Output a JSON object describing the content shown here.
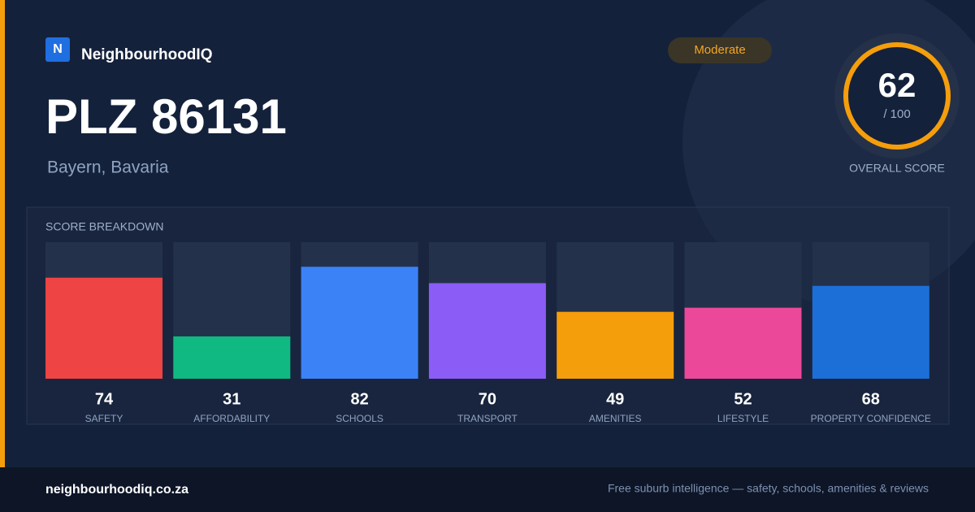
{
  "brand": {
    "logo": "N",
    "name": "NeighbourhoodIQ"
  },
  "badge": "Moderate",
  "title": "PLZ 86131",
  "subtitle": "Bayern, Bavaria",
  "overall": {
    "score": "62",
    "max_label": "/ 100",
    "label": "OVERALL SCORE"
  },
  "chart_data": {
    "type": "bar",
    "title": "SCORE BREAKDOWN",
    "categories": [
      "SAFETY",
      "AFFORDABILITY",
      "SCHOOLS",
      "TRANSPORT",
      "AMENITIES",
      "LIFESTYLE",
      "PROPERTY CONFIDENCE"
    ],
    "values": [
      74,
      31,
      82,
      70,
      49,
      52,
      68
    ],
    "colors": [
      "#ef4444",
      "#10b981",
      "#3b82f6",
      "#8b5cf6",
      "#f59e0b",
      "#ec4899",
      "#1d6fd8"
    ],
    "ylim": [
      0,
      100
    ]
  },
  "footer": {
    "url": "neighbourhoodiq.co.za",
    "tagline": "Free suburb intelligence — safety, schools, amenities & reviews"
  }
}
